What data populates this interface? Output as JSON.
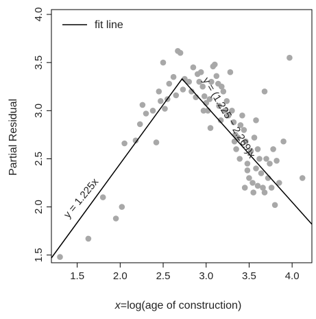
{
  "chart_data": {
    "type": "scatter",
    "xlabel_prefix": "x",
    "xlabel_rest": "=log(age of construction)",
    "ylabel": "Partial Residual",
    "xlim": [
      1.2,
      4.23
    ],
    "ylim": [
      1.42,
      4.05
    ],
    "x_ticks": [
      1.5,
      2.0,
      2.5,
      3.0,
      3.5,
      4.0
    ],
    "x_tick_labels": [
      "1.5",
      "2.0",
      "2.5",
      "3.0",
      "3.5",
      "4.0"
    ],
    "y_ticks": [
      1.5,
      2.0,
      2.5,
      3.0,
      3.5,
      4.0
    ],
    "y_tick_labels": [
      "1.5",
      "2.0",
      "2.5",
      "3.0",
      "3.5",
      "4.0"
    ],
    "grid": false,
    "legend": {
      "placement": "top-left",
      "entries": [
        {
          "label": "fit line",
          "style": "line"
        }
      ]
    },
    "point_color": "#a8a8a8",
    "line_color": "#000000",
    "fit_line": {
      "name": "fit line",
      "points": [
        [
          1.2,
          1.47
        ],
        [
          2.72,
          3.33
        ],
        [
          4.23,
          1.82
        ]
      ]
    },
    "annotations": {
      "left_label": "y = 1.225x",
      "right_label": "y = (1.225 − 2.269)x"
    },
    "series": [
      {
        "points": [
          [
            1.3,
            1.48
          ],
          [
            1.63,
            1.67
          ],
          [
            1.8,
            2.1
          ],
          [
            1.95,
            1.88
          ],
          [
            2.02,
            2.0
          ],
          [
            2.05,
            2.66
          ],
          [
            2.18,
            2.69
          ],
          [
            2.23,
            2.86
          ],
          [
            2.26,
            3.06
          ],
          [
            2.3,
            2.97
          ],
          [
            2.38,
            3.0
          ],
          [
            2.42,
            2.67
          ],
          [
            2.45,
            3.2
          ],
          [
            2.47,
            3.1
          ],
          [
            2.5,
            3.5
          ],
          [
            2.52,
            3.02
          ],
          [
            2.55,
            3.12
          ],
          [
            2.57,
            3.28
          ],
          [
            2.62,
            3.35
          ],
          [
            2.65,
            3.16
          ],
          [
            2.67,
            3.62
          ],
          [
            2.7,
            3.6
          ],
          [
            2.73,
            3.22
          ],
          [
            2.75,
            3.33
          ],
          [
            2.8,
            3.3
          ],
          [
            2.83,
            3.2
          ],
          [
            2.85,
            3.45
          ],
          [
            2.88,
            3.14
          ],
          [
            2.9,
            3.38
          ],
          [
            2.92,
            3.3
          ],
          [
            2.94,
            3.4
          ],
          [
            2.96,
            3.25
          ],
          [
            2.98,
            3.15
          ],
          [
            3.0,
            3.08
          ],
          [
            3.02,
            3.0
          ],
          [
            3.04,
            3.12
          ],
          [
            3.06,
            3.3
          ],
          [
            3.08,
            3.46
          ],
          [
            3.1,
            3.48
          ],
          [
            3.12,
            3.36
          ],
          [
            3.14,
            3.28
          ],
          [
            3.15,
            3.05
          ],
          [
            3.17,
            2.9
          ],
          [
            3.2,
            3.2
          ],
          [
            3.22,
            3.0
          ],
          [
            3.24,
            3.1
          ],
          [
            3.26,
            2.95
          ],
          [
            3.28,
            3.4
          ],
          [
            3.3,
            3.0
          ],
          [
            3.32,
            2.88
          ],
          [
            3.34,
            2.75
          ],
          [
            3.35,
            2.6
          ],
          [
            3.37,
            2.72
          ],
          [
            3.39,
            2.5
          ],
          [
            3.4,
            2.85
          ],
          [
            3.42,
            2.95
          ],
          [
            3.44,
            2.8
          ],
          [
            3.46,
            2.68
          ],
          [
            3.48,
            2.45
          ],
          [
            3.5,
            2.3
          ],
          [
            3.52,
            2.58
          ],
          [
            3.54,
            2.25
          ],
          [
            3.56,
            2.72
          ],
          [
            3.58,
            2.4
          ],
          [
            3.6,
            2.6
          ],
          [
            3.62,
            2.5
          ],
          [
            3.64,
            2.35
          ],
          [
            3.66,
            2.2
          ],
          [
            3.68,
            2.15
          ],
          [
            3.7,
            2.5
          ],
          [
            3.72,
            2.3
          ],
          [
            3.74,
            2.45
          ],
          [
            3.76,
            2.2
          ],
          [
            3.78,
            2.6
          ],
          [
            3.8,
            2.02
          ],
          [
            3.82,
            2.48
          ],
          [
            3.85,
            2.25
          ],
          [
            3.9,
            2.68
          ],
          [
            3.97,
            3.55
          ],
          [
            4.12,
            2.3
          ],
          [
            3.58,
            2.9
          ],
          [
            3.68,
            3.2
          ],
          [
            3.48,
            2.38
          ],
          [
            3.55,
            2.15
          ],
          [
            3.45,
            2.2
          ],
          [
            3.6,
            2.22
          ],
          [
            3.05,
            2.82
          ],
          [
            2.97,
            3.0
          ],
          [
            3.18,
            3.25
          ],
          [
            3.33,
            2.68
          ]
        ]
      }
    ]
  }
}
